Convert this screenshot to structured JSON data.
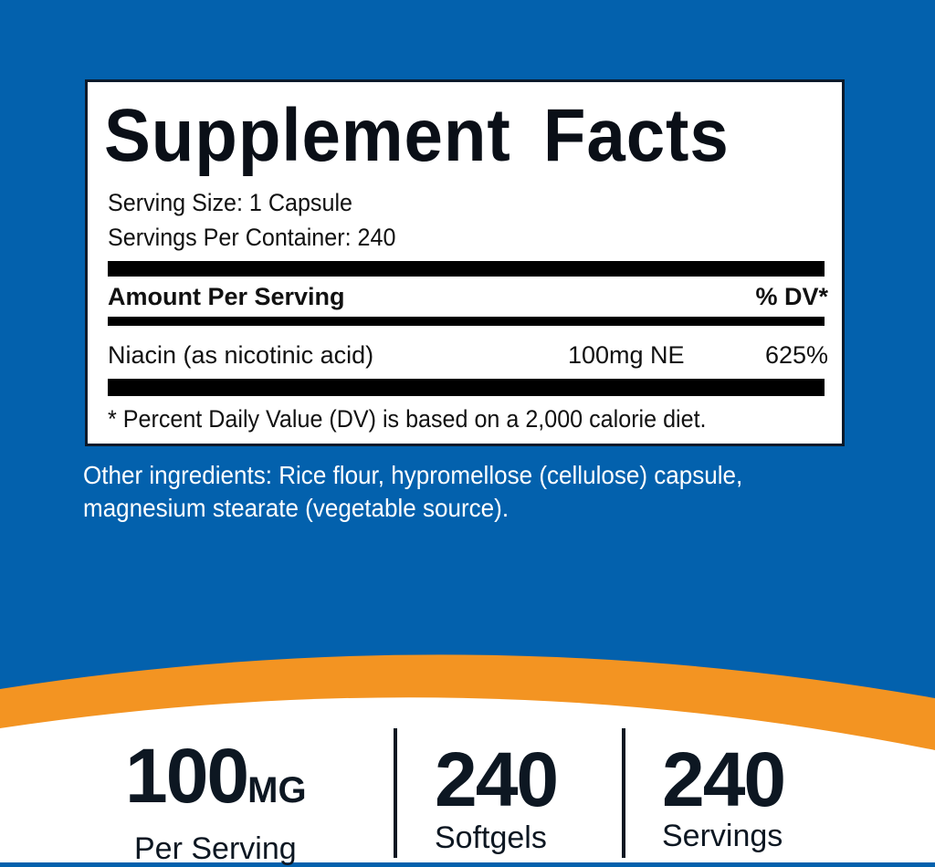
{
  "colors": {
    "background": "#0361ad",
    "accent": "#f39422",
    "text": "#0d1722"
  },
  "facts": {
    "title": "Supplement Facts",
    "serving_size": "Serving Size: 1 Capsule",
    "servings_per_container": "Servings Per Container: 240",
    "header_left": "Amount Per Serving",
    "header_right": "% DV*",
    "rows": [
      {
        "name": "Niacin (as nicotinic acid)",
        "amount": "100mg NE",
        "dv": "625%"
      }
    ],
    "footnote": "* Percent Daily Value (DV) is based on a 2,000 calorie diet."
  },
  "other_ingredients": [
    "Other ingredients: Rice flour, hypromellose (cellulose) capsule,",
    "magnesium stearate (vegetable source)."
  ],
  "stats": [
    {
      "value": "100",
      "unit": "MG",
      "label": "Per Serving"
    },
    {
      "value": "240",
      "label": "Softgels"
    },
    {
      "value": "240",
      "label": "Servings"
    }
  ]
}
